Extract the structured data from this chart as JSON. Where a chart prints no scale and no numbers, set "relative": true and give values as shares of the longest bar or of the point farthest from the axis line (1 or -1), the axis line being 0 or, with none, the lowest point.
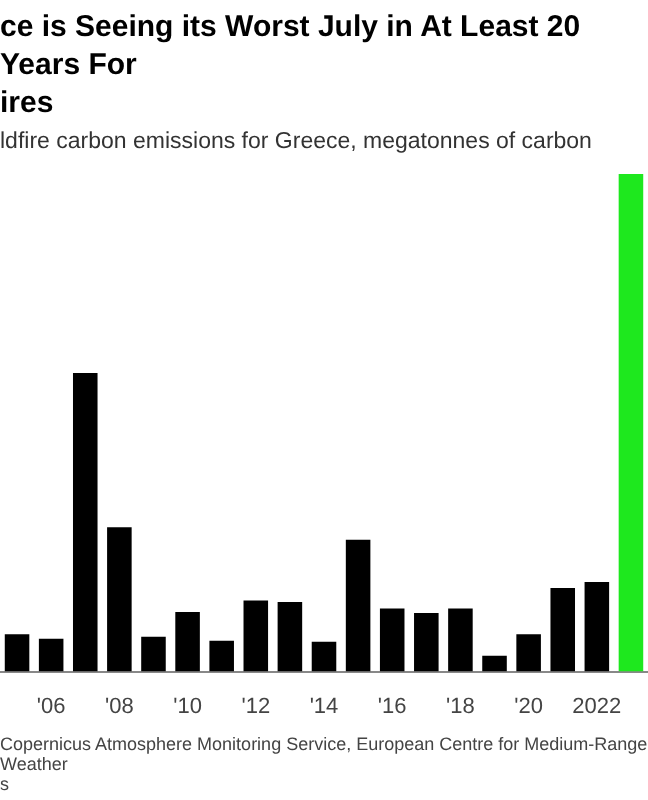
{
  "chart_data": {
    "type": "bar",
    "title": "ce is Seeing its Worst July in At Least 20 Years For\nires",
    "subtitle": "ldfire carbon emissions for Greece, megatonnes of carbon",
    "categories": [
      null,
      "'06",
      null,
      "'08",
      null,
      "'10",
      null,
      "'12",
      null,
      "'14",
      null,
      "'16",
      null,
      "'18",
      null,
      "'20",
      null,
      "2022",
      null
    ],
    "values": [
      0.075,
      0.066,
      0.6,
      0.29,
      0.07,
      0.12,
      0.062,
      0.143,
      0.14,
      0.06,
      0.265,
      0.127,
      0.118,
      0.127,
      0.032,
      0.075,
      0.168,
      0.18,
      1
    ],
    "colors": [
      "#000000",
      "#000000",
      "#000000",
      "#000000",
      "#000000",
      "#000000",
      "#000000",
      "#000000",
      "#000000",
      "#000000",
      "#000000",
      "#000000",
      "#000000",
      "#000000",
      "#000000",
      "#000000",
      "#000000",
      "#000000",
      "#1ee81e"
    ],
    "relative": true,
    "annotations": [
      "Copernicus Atmosphere Monitoring Service, European Centre for Medium-Range Weather\ns"
    ]
  }
}
